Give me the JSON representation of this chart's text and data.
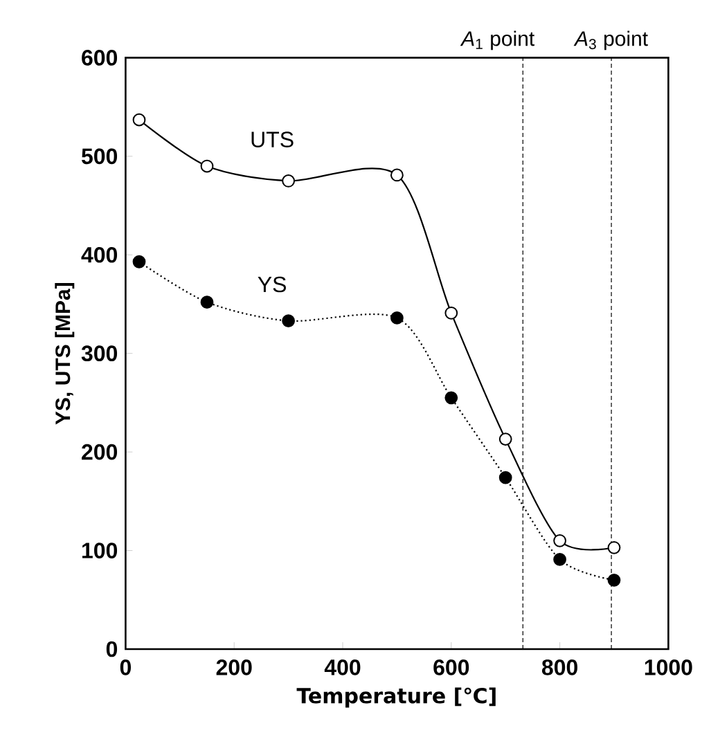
{
  "chart_data": {
    "type": "line",
    "xlabel": "Temperature [℃]",
    "ylabel": "YS, UTS [MPa]",
    "x": [
      25,
      150,
      300,
      500,
      600,
      700,
      800,
      900
    ],
    "series": [
      {
        "name": "UTS",
        "color": "#000000",
        "line_style": "solid",
        "values": [
          537,
          490,
          475,
          481,
          341,
          213,
          110,
          103
        ]
      },
      {
        "name": "YS",
        "color": "#000000",
        "line_style": "dotted",
        "values": [
          393,
          352,
          333,
          336,
          255,
          174,
          91,
          70
        ]
      }
    ],
    "xlim": [
      0,
      1000
    ],
    "ylim": [
      0,
      600
    ],
    "xticks": [
      0,
      200,
      400,
      600,
      800,
      1000
    ],
    "yticks": [
      0,
      100,
      200,
      300,
      400,
      500,
      600
    ],
    "marker": "circle",
    "ref_lines": [
      {
        "axis": "x",
        "value": 732,
        "label": "*A*$_{1}$ point",
        "line_style": "dashed"
      },
      {
        "axis": "x",
        "value": 895,
        "label": "*A*$_{3}$ point",
        "line_style": "dashed"
      }
    ]
  }
}
